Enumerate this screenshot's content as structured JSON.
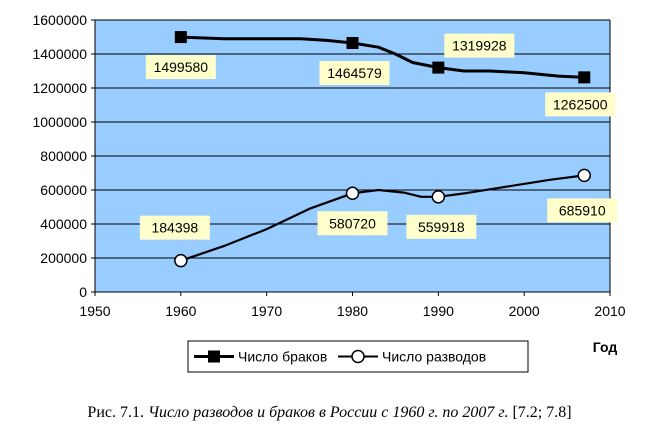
{
  "chart_data": {
    "type": "line",
    "x_title": "Год",
    "xlim": [
      1950,
      2010
    ],
    "ylim": [
      0,
      1600000
    ],
    "x_ticks": [
      1950,
      1960,
      1970,
      1980,
      1990,
      2000,
      2010
    ],
    "y_ticks": [
      0,
      200000,
      400000,
      600000,
      800000,
      1000000,
      1200000,
      1400000,
      1600000
    ],
    "grid": "horizontal",
    "plot_background": "#99ccff",
    "legend_position": "bottom",
    "series": [
      {
        "name": "Число браков",
        "color": "#000000",
        "marker": "square-filled",
        "points": [
          {
            "x": 1960,
            "y": 1499580
          },
          {
            "x": 1965,
            "y": 1490000
          },
          {
            "x": 1970,
            "y": 1490000
          },
          {
            "x": 1974,
            "y": 1490000
          },
          {
            "x": 1977,
            "y": 1480000
          },
          {
            "x": 1980,
            "y": 1464579
          },
          {
            "x": 1983,
            "y": 1440000
          },
          {
            "x": 1985,
            "y": 1400000
          },
          {
            "x": 1987,
            "y": 1350000
          },
          {
            "x": 1990,
            "y": 1319928
          },
          {
            "x": 1993,
            "y": 1300000
          },
          {
            "x": 1996,
            "y": 1300000
          },
          {
            "x": 2000,
            "y": 1290000
          },
          {
            "x": 2004,
            "y": 1270000
          },
          {
            "x": 2007,
            "y": 1262500
          }
        ],
        "markers": [
          {
            "x": 1960,
            "y": 1499580,
            "label": "1499580"
          },
          {
            "x": 1980,
            "y": 1464579,
            "label": "1464579"
          },
          {
            "x": 1990,
            "y": 1319928,
            "label": "1319928"
          },
          {
            "x": 2007,
            "y": 1262500,
            "label": "1262500"
          }
        ]
      },
      {
        "name": "Число разводов",
        "color": "#000000",
        "marker": "circle-open",
        "points": [
          {
            "x": 1960,
            "y": 184398
          },
          {
            "x": 1965,
            "y": 270000
          },
          {
            "x": 1970,
            "y": 370000
          },
          {
            "x": 1975,
            "y": 490000
          },
          {
            "x": 1980,
            "y": 580720
          },
          {
            "x": 1983,
            "y": 600000
          },
          {
            "x": 1986,
            "y": 585000
          },
          {
            "x": 1988,
            "y": 560000
          },
          {
            "x": 1990,
            "y": 559918
          },
          {
            "x": 1993,
            "y": 580000
          },
          {
            "x": 1998,
            "y": 620000
          },
          {
            "x": 2003,
            "y": 660000
          },
          {
            "x": 2007,
            "y": 685910
          }
        ],
        "markers": [
          {
            "x": 1960,
            "y": 184398,
            "label": "184398"
          },
          {
            "x": 1980,
            "y": 580720,
            "label": "580720"
          },
          {
            "x": 1990,
            "y": 559918,
            "label": "559918"
          },
          {
            "x": 2007,
            "y": 685910,
            "label": "685910"
          }
        ]
      }
    ]
  },
  "caption": {
    "prefix": "Рис. 7.1.",
    "italic": "Число разводов и браков в России с 1960 г. по 2007 г.",
    "suffix": "[7.2; 7.8]"
  }
}
